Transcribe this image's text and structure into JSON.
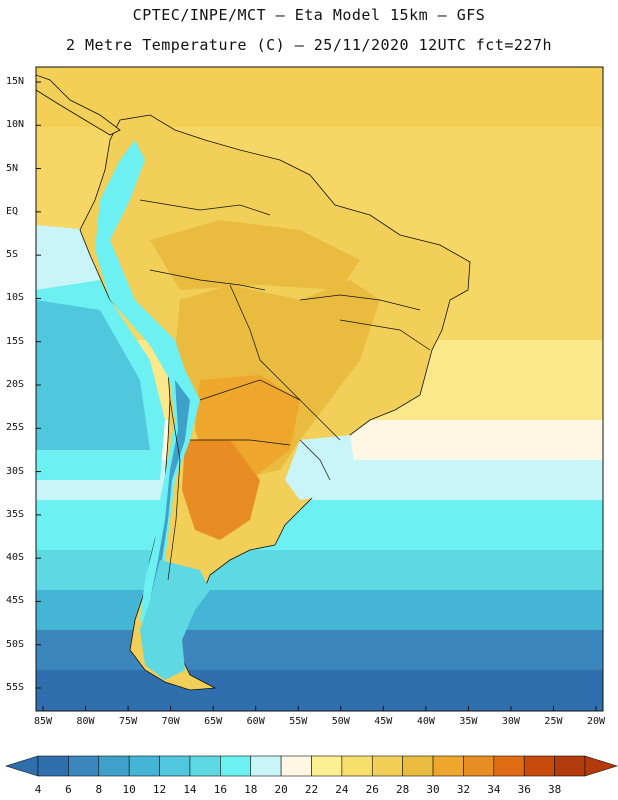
{
  "header": {
    "title_line1": "CPTEC/INPE/MCT –  Eta Model 15km – GFS",
    "title_line2": "2 Metre Temperature (C) – 25/11/2020 12UTC fct=227h"
  },
  "map": {
    "lat_labels": [
      "15N",
      "10N",
      "5N",
      "EQ",
      "5S",
      "10S",
      "15S",
      "20S",
      "25S",
      "30S",
      "35S",
      "40S",
      "45S",
      "50S",
      "55S"
    ],
    "lon_labels": [
      "85W",
      "80W",
      "75W",
      "70W",
      "65W",
      "60W",
      "55W",
      "50W",
      "45W",
      "40W",
      "35W",
      "30W",
      "25W",
      "20W"
    ],
    "lat_values": [
      15,
      10,
      5,
      0,
      -5,
      -10,
      -15,
      -20,
      -25,
      -30,
      -35,
      -40,
      -45,
      -50,
      -55
    ],
    "lon_values": [
      -85,
      -80,
      -75,
      -70,
      -65,
      -60,
      -55,
      -50,
      -45,
      -40,
      -35,
      -30,
      -25,
      -20
    ]
  },
  "colorbar": {
    "labels": [
      "4",
      "6",
      "8",
      "10",
      "12",
      "14",
      "16",
      "18",
      "20",
      "22",
      "24",
      "26",
      "28",
      "30",
      "32",
      "34",
      "36",
      "38"
    ],
    "colors": [
      "#2f6fae",
      "#3b86bd",
      "#3fa0c9",
      "#45b5d6",
      "#51c7dd",
      "#5ed9e4",
      "#6df0f2",
      "#c9f4f8",
      "#fdf7e4",
      "#fbef92",
      "#f7df6b",
      "#f1cf58",
      "#e9bb3f",
      "#eea62c",
      "#e88d24",
      "#e06c15",
      "#c84a0d",
      "#b33a0c"
    ]
  }
}
